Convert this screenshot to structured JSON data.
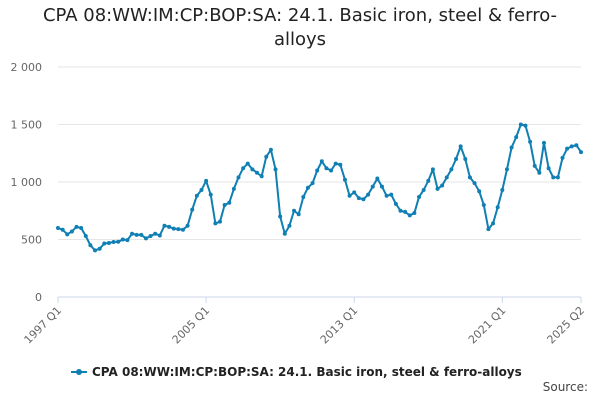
{
  "chart_data": {
    "type": "line",
    "title_lines": [
      "CPA 08:WW:IM:CP:BOP:SA: 24.1. Basic iron, steel & ferro-",
      "alloys"
    ],
    "source": "Source:",
    "y_ticks": [
      {
        "value": 0,
        "label": "0"
      },
      {
        "value": 500,
        "label": "500"
      },
      {
        "value": 1000,
        "label": "1 000"
      },
      {
        "value": 1500,
        "label": "1 500"
      },
      {
        "value": 2000,
        "label": "2 000"
      }
    ],
    "ylim": [
      0,
      2000
    ],
    "x_ticks": [
      {
        "index": 0,
        "label": "1997 Q1"
      },
      {
        "index": 32,
        "label": "2005 Q1"
      },
      {
        "index": 64,
        "label": "2013 Q1"
      },
      {
        "index": 96,
        "label": "2021 Q1"
      },
      {
        "index": 113,
        "label": "2025 Q2"
      }
    ],
    "x_start": "1997 Q1",
    "x_end": "2025 Q2",
    "grid": true,
    "legend_position": "bottom",
    "series": [
      {
        "name": "CPA 08:WW:IM:CP:BOP:SA: 24.1. Basic iron, steel & ferro-alloys",
        "color": "#0f7fb4",
        "values": [
          600,
          585,
          545,
          570,
          610,
          600,
          530,
          450,
          405,
          420,
          465,
          470,
          478,
          480,
          500,
          495,
          550,
          540,
          540,
          510,
          530,
          550,
          535,
          620,
          610,
          595,
          590,
          585,
          620,
          760,
          880,
          930,
          1010,
          890,
          640,
          655,
          800,
          820,
          940,
          1040,
          1120,
          1160,
          1110,
          1080,
          1050,
          1220,
          1280,
          1110,
          700,
          550,
          620,
          750,
          720,
          870,
          950,
          990,
          1100,
          1180,
          1120,
          1100,
          1160,
          1150,
          1020,
          880,
          910,
          860,
          850,
          890,
          960,
          1030,
          960,
          880,
          890,
          810,
          750,
          740,
          710,
          730,
          870,
          930,
          1010,
          1110,
          940,
          970,
          1040,
          1110,
          1200,
          1310,
          1200,
          1040,
          990,
          920,
          800,
          590,
          640,
          780,
          930,
          1110,
          1300,
          1390,
          1500,
          1490,
          1350,
          1140,
          1080,
          1340,
          1120,
          1040,
          1040,
          1210,
          1290,
          1310,
          1320,
          1260
        ]
      }
    ]
  }
}
